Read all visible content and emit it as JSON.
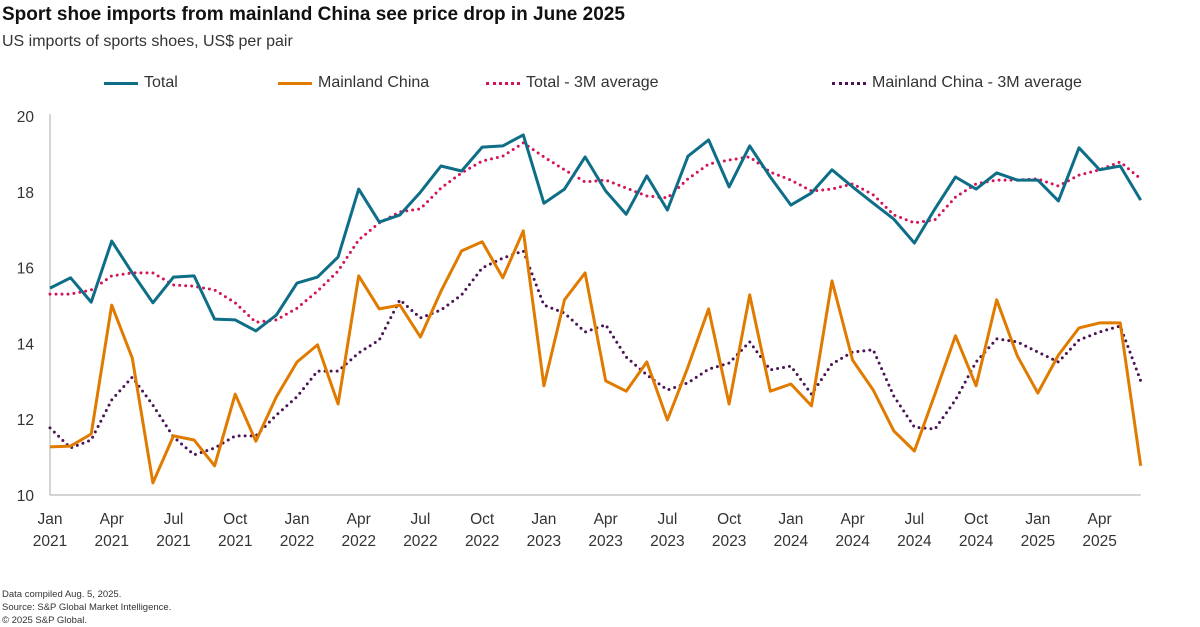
{
  "title": "Sport shoe imports from mainland China see price drop in June 2025",
  "subtitle": "US imports of sports shoes, US$ per pair",
  "footer": [
    "Data compiled Aug. 5, 2025.",
    "Source: S&P Global Market Intelligence.",
    "© 2025 S&P Global."
  ],
  "chart_data": {
    "type": "line",
    "title": "Sport shoe imports from mainland China see price drop in June 2025",
    "subtitle": "US imports of sports shoes, US$ per pair",
    "xlabel": "",
    "ylabel": "",
    "ylim": [
      10,
      20
    ],
    "yticks": [
      "10",
      "12",
      "14",
      "16",
      "18",
      "20"
    ],
    "x_start": "Jan 2021",
    "x_end": "Jun 2025",
    "xticks": [
      [
        "Jan",
        "2021"
      ],
      [
        "Apr",
        "2021"
      ],
      [
        "Jul",
        "2021"
      ],
      [
        "Oct",
        "2021"
      ],
      [
        "Jan",
        "2022"
      ],
      [
        "Apr",
        "2022"
      ],
      [
        "Jul",
        "2022"
      ],
      [
        "Oct",
        "2022"
      ],
      [
        "Jan",
        "2023"
      ],
      [
        "Apr",
        "2023"
      ],
      [
        "Jul",
        "2023"
      ],
      [
        "Oct",
        "2023"
      ],
      [
        "Jan",
        "2024"
      ],
      [
        "Apr",
        "2024"
      ],
      [
        "Jul",
        "2024"
      ],
      [
        "Oct",
        "2024"
      ],
      [
        "Jan",
        "2025"
      ],
      [
        "Apr",
        "2025"
      ]
    ],
    "grid": false,
    "legend_position": "top",
    "series": [
      {
        "name": "Total",
        "color": "#0e6e87",
        "style": "solid",
        "values": [
          15.46,
          15.73,
          15.09,
          16.7,
          15.86,
          15.07,
          15.75,
          15.78,
          14.64,
          14.62,
          14.33,
          14.75,
          15.59,
          15.75,
          16.28,
          18.07,
          17.2,
          17.39,
          17.99,
          18.68,
          18.55,
          19.18,
          19.21,
          19.5,
          17.7,
          18.07,
          18.92,
          18.02,
          17.41,
          18.42,
          17.52,
          18.94,
          19.37,
          18.13,
          19.21,
          18.39,
          17.65,
          17.97,
          18.58,
          18.13,
          17.7,
          17.28,
          16.65,
          17.55,
          18.39,
          18.07,
          18.5,
          18.31,
          18.31,
          17.76,
          19.16,
          18.58,
          18.68,
          17.78
        ]
      },
      {
        "name": "Mainland China",
        "color": "#e07b00",
        "style": "solid",
        "values": [
          11.27,
          11.29,
          11.61,
          15.01,
          13.61,
          10.32,
          11.56,
          11.45,
          10.77,
          12.66,
          11.42,
          12.59,
          13.51,
          13.96,
          12.4,
          15.78,
          14.91,
          15.01,
          14.17,
          15.38,
          16.44,
          16.68,
          15.73,
          16.97,
          12.88,
          15.15,
          15.86,
          13.01,
          12.74,
          13.51,
          11.98,
          13.38,
          14.91,
          12.4,
          15.28,
          12.74,
          12.93,
          12.35,
          15.65,
          13.56,
          12.77,
          11.69,
          11.16,
          12.66,
          14.2,
          12.88,
          15.15,
          13.67,
          12.69,
          13.69,
          14.41,
          14.54,
          14.54,
          10.77
        ]
      },
      {
        "name": "Total - 3M average",
        "color": "#d4145a",
        "style": "dotted",
        "values": [
          15.3,
          15.3,
          15.41,
          15.78,
          15.86,
          15.86,
          15.54,
          15.51,
          15.41,
          15.07,
          14.56,
          14.62,
          14.93,
          15.38,
          15.91,
          16.73,
          17.18,
          17.47,
          17.55,
          18.1,
          18.5,
          18.81,
          18.94,
          19.29,
          18.92,
          18.58,
          18.26,
          18.31,
          18.1,
          17.89,
          17.84,
          18.34,
          18.73,
          18.84,
          18.92,
          18.52,
          18.31,
          18.02,
          18.07,
          18.21,
          17.92,
          17.39,
          17.18,
          17.26,
          17.86,
          18.21,
          18.31,
          18.31,
          18.34,
          18.15,
          18.44,
          18.58,
          18.79,
          18.34
        ]
      },
      {
        "name": "Mainland China - 3M average",
        "color": "#4b1455",
        "style": "dotted",
        "values": [
          11.77,
          11.24,
          11.45,
          12.51,
          13.11,
          12.37,
          11.53,
          11.06,
          11.24,
          11.56,
          11.56,
          12.11,
          12.59,
          13.27,
          13.27,
          13.75,
          14.09,
          15.15,
          14.67,
          14.88,
          15.28,
          15.99,
          16.25,
          16.44,
          15.01,
          14.8,
          14.3,
          14.49,
          13.64,
          13.17,
          12.77,
          12.96,
          13.32,
          13.48,
          14.04,
          13.3,
          13.4,
          12.66,
          13.46,
          13.77,
          13.83,
          12.61,
          11.79,
          11.74,
          12.51,
          13.51,
          14.12,
          14.04,
          13.77,
          13.51,
          14.09,
          14.3,
          14.46,
          13.01
        ]
      }
    ]
  }
}
